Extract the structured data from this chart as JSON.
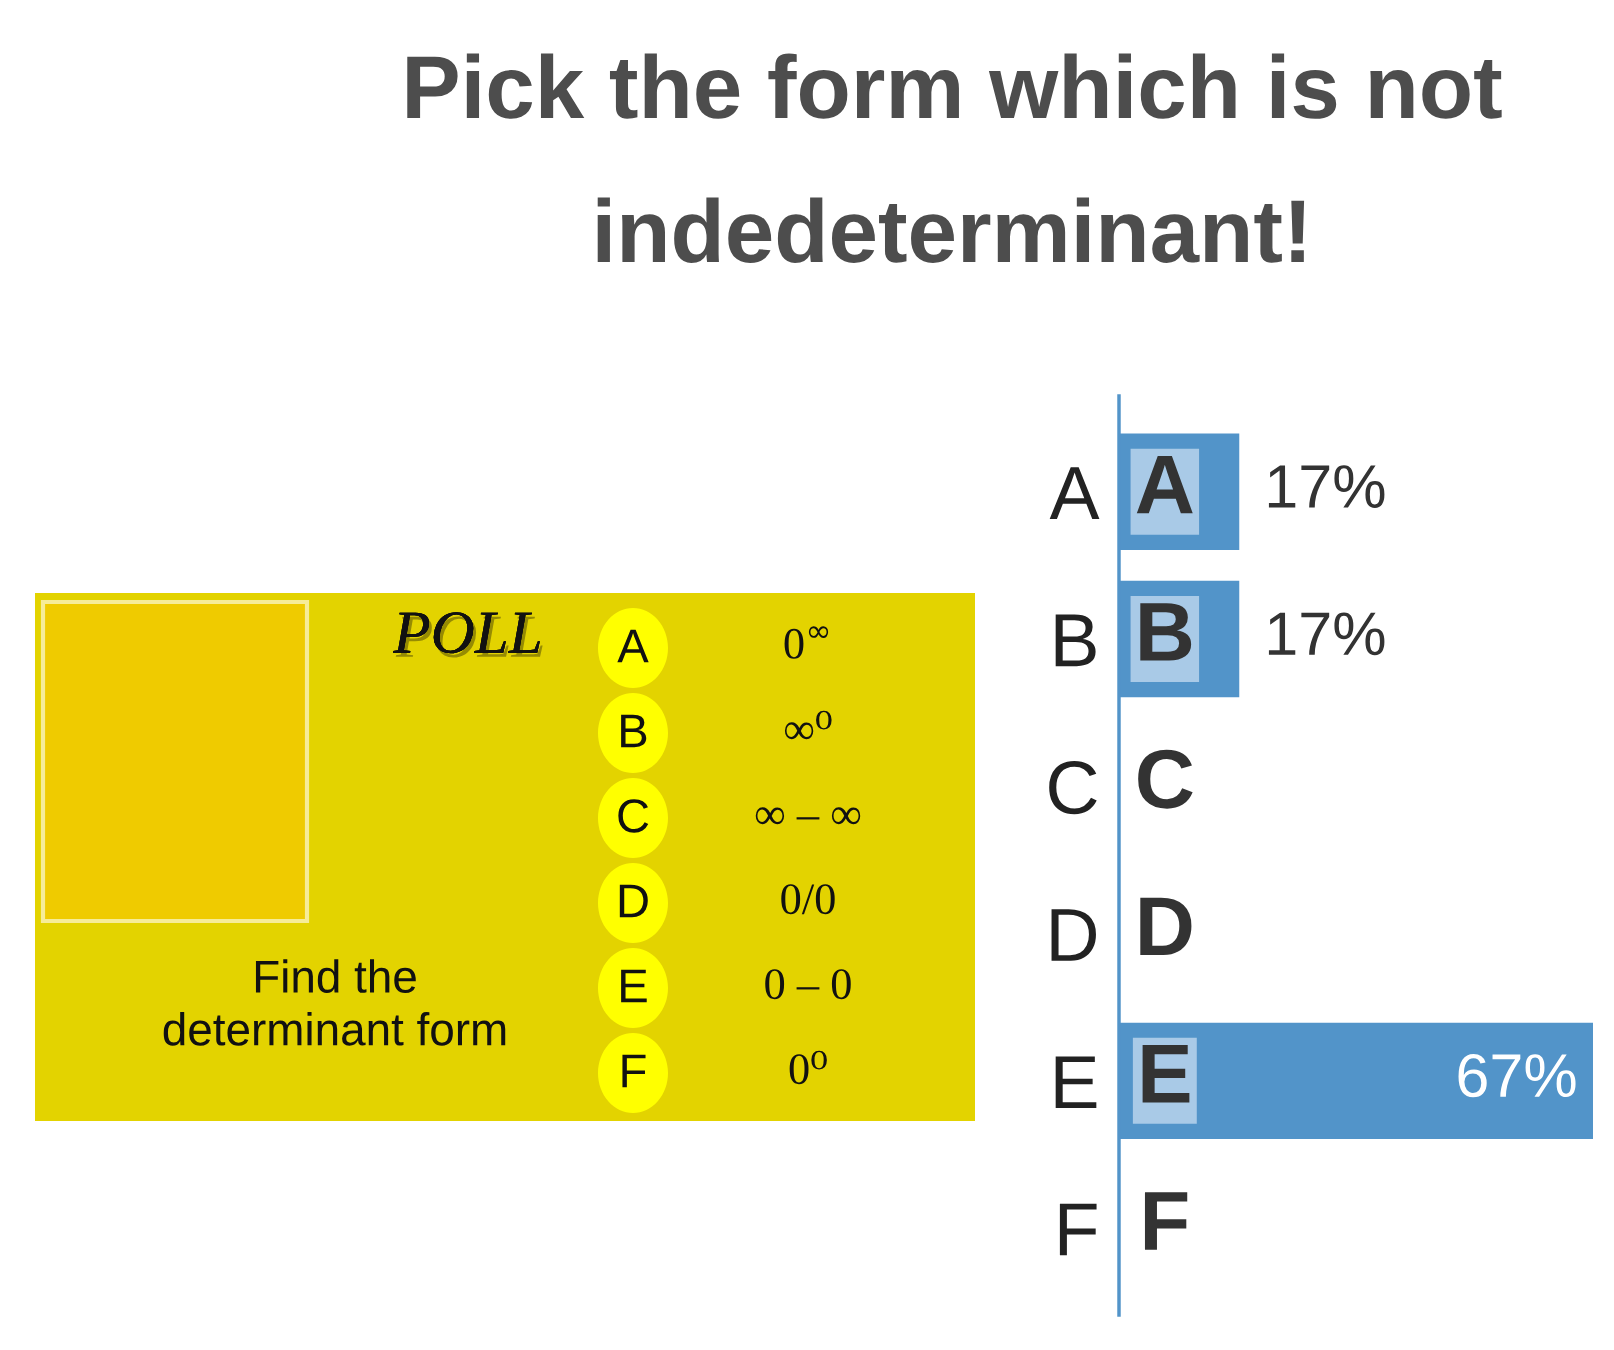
{
  "chart_data": [
    {
      "type": "other",
      "title": "POLL",
      "y_categories": [
        "A",
        "B",
        "C",
        "D",
        "E",
        "F"
      ],
      "y2_categories": [
        "0$^{∞}$",
        "∞⁰",
        "∞ – ∞",
        "0/0",
        "0 – 0",
        "0⁰"
      ],
      "annotations": [
        "Find the\ndeterminant form"
      ]
    },
    {
      "type": "bar",
      "orientation": "horizontal",
      "title": "Pick the form which is not indedeterminant!",
      "categories": [
        "A",
        "B",
        "C",
        "D",
        "E",
        "F"
      ],
      "values": [
        17,
        17,
        0,
        0,
        67,
        0
      ],
      "color": "#5294c9",
      "value_labels": [
        "17%",
        "17%",
        null,
        null,
        "67%",
        null
      ],
      "annotations": [
        "A",
        "B",
        "C",
        "D",
        "E",
        "F"
      ],
      "tick_labels": "y"
    }
  ]
}
